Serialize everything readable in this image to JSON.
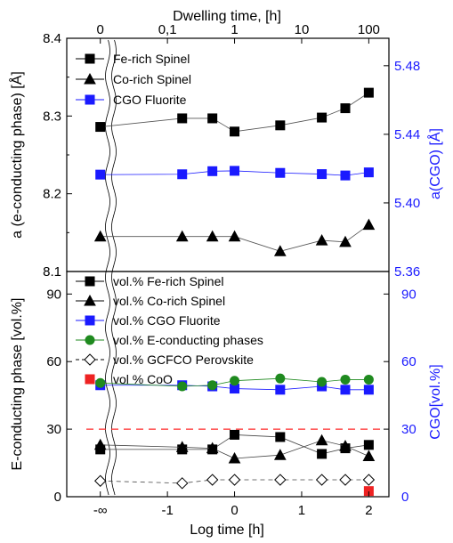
{
  "chart_data": [
    {
      "type": "line",
      "panel": "top",
      "top_axis": {
        "label": "Dwelling time, [h]",
        "tick_labels": [
          "0",
          "0,1",
          "1",
          "10",
          "100"
        ]
      },
      "y_left": {
        "label": "a (e-conducting phase) [Å]",
        "range": [
          8.1,
          8.4
        ],
        "tick_labels": [
          "8.1",
          "8.2",
          "8.3",
          "8.4"
        ]
      },
      "y_right": {
        "label": "a(CGO) [Å]",
        "range": [
          5.36,
          5.496
        ],
        "tick_labels": [
          "5.36",
          "5.40",
          "5.44",
          "5.48"
        ],
        "color": "#1a1aff"
      },
      "x": [
        -2.0,
        -0.78,
        -0.33,
        0.0,
        0.68,
        1.3,
        1.65,
        2.0
      ],
      "series": [
        {
          "name": "Fe-rich Spinel",
          "marker": "square",
          "color": "#000000",
          "axis": "left",
          "values": [
            8.286,
            8.297,
            8.297,
            8.28,
            8.288,
            8.298,
            8.31,
            8.33
          ]
        },
        {
          "name": "Co-rich Spinel",
          "marker": "triangle",
          "color": "#000000",
          "axis": "left",
          "values": [
            8.145,
            8.145,
            8.145,
            8.145,
            8.126,
            8.14,
            8.138,
            8.16
          ]
        },
        {
          "name": "CGO Fluorite",
          "marker": "square",
          "color": "#1a1aff",
          "axis": "right",
          "values": [
            5.4165,
            5.4167,
            5.4185,
            5.4187,
            5.4175,
            5.4168,
            5.416,
            5.4178
          ]
        }
      ]
    },
    {
      "type": "line",
      "panel": "bottom",
      "x_axis": {
        "label": "Log time [h]",
        "range": [
          -2.5,
          2.3
        ],
        "tick_labels": [
          {
            "value": -2,
            "label": "-∞"
          },
          {
            "value": -1,
            "label": "-1"
          },
          {
            "value": 0,
            "label": "0"
          },
          {
            "value": 1,
            "label": "1"
          },
          {
            "value": 2,
            "label": "2"
          }
        ]
      },
      "y_left": {
        "label": "E-conducting phase [vol.%]",
        "range": [
          0,
          100
        ],
        "tick_labels": [
          "0",
          "30",
          "60",
          "90"
        ]
      },
      "y_right": {
        "label": "CGO[vol.%]",
        "range": [
          0,
          100
        ],
        "tick_labels": [
          "0",
          "30",
          "60",
          "90"
        ],
        "color": "#1a1aff"
      },
      "reference_line": {
        "y": 30,
        "color": "#ff2a2a",
        "style": "dashed"
      },
      "x": [
        -2.0,
        -0.78,
        -0.33,
        0.0,
        0.68,
        1.3,
        1.65,
        2.0
      ],
      "series": [
        {
          "name": "vol.% Fe-rich Spinel",
          "marker": "square",
          "color": "#000000",
          "filled": true,
          "values": [
            21,
            21,
            21,
            27.5,
            26.5,
            19,
            21.5,
            23
          ]
        },
        {
          "name": "vol.% Co-rich Spinel",
          "marker": "triangle",
          "color": "#000000",
          "filled": true,
          "values": [
            23,
            22,
            21.5,
            17,
            18.5,
            25,
            22.5,
            18
          ]
        },
        {
          "name": "vol.% CGO Fluorite",
          "marker": "square",
          "color": "#1a1aff",
          "filled": true,
          "values": [
            49.5,
            49.5,
            49,
            48,
            47.5,
            49,
            47.5,
            47.5
          ]
        },
        {
          "name": "vol.% E-conducting phases",
          "marker": "circle",
          "color": "#1f8a1f",
          "filled": true,
          "values": [
            50.5,
            49,
            49.5,
            51.5,
            52.5,
            51,
            52,
            52
          ]
        },
        {
          "name": "vol.% GCFCO Perovskite",
          "marker": "diamond",
          "color": "#000000",
          "filled": false,
          "dashed": true,
          "values": [
            7,
            6,
            7.5,
            7.5,
            7.5,
            7.5,
            7.5,
            7.5
          ]
        },
        {
          "name": "vol % CoO",
          "marker": "square",
          "color": "#ee2222",
          "filled": true,
          "no_line": true,
          "x": [
            2.0
          ],
          "values": [
            2.5
          ]
        }
      ]
    }
  ]
}
